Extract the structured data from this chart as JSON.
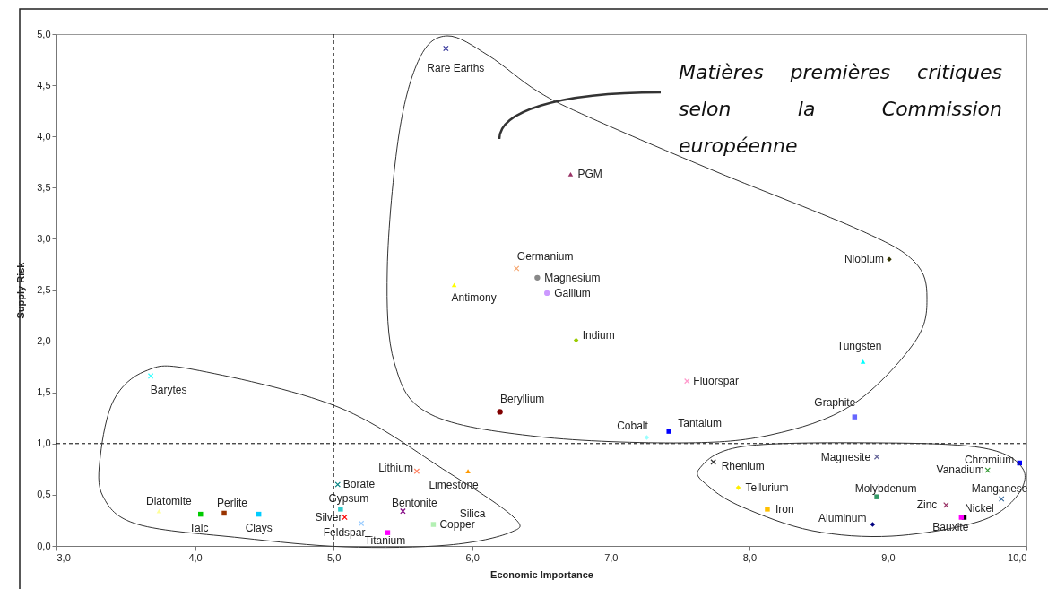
{
  "chart_data": {
    "type": "scatter",
    "xlabel": "Economic Importance",
    "ylabel": "Supply Risk",
    "xlim": [
      3,
      10
    ],
    "ylim": [
      0,
      5
    ],
    "xticks": [
      {
        "value": 3,
        "label": "3,0"
      },
      {
        "value": 4,
        "label": "4,0"
      },
      {
        "value": 5,
        "label": "5,0"
      },
      {
        "value": 6,
        "label": "6,0"
      },
      {
        "value": 7,
        "label": "7,0"
      },
      {
        "value": 8,
        "label": "8,0"
      },
      {
        "value": 9,
        "label": "9,0"
      },
      {
        "value": 10,
        "label": "10,0"
      }
    ],
    "yticks": [
      {
        "value": 0,
        "label": "0,0"
      },
      {
        "value": 0.5,
        "label": "0,5"
      },
      {
        "value": 1,
        "label": "1,0"
      },
      {
        "value": 1.5,
        "label": "1,5"
      },
      {
        "value": 2,
        "label": "2,0"
      },
      {
        "value": 2.5,
        "label": "2,5"
      },
      {
        "value": 3,
        "label": "3,0"
      },
      {
        "value": 3.5,
        "label": "3,5"
      },
      {
        "value": 4,
        "label": "4,0"
      },
      {
        "value": 4.5,
        "label": "4,5"
      },
      {
        "value": 5,
        "label": "5,0"
      }
    ],
    "ref_lines": [
      {
        "axis": "x",
        "value": 5,
        "line_style": "dashed"
      },
      {
        "axis": "y",
        "value": 1,
        "line_style": "dashed"
      }
    ],
    "annotations": [
      "Matières premières critiques selon la Commission européenne",
      "Silica"
    ],
    "series": [
      {
        "name": "Rare Earths",
        "color": "#333399",
        "marker": "cross",
        "x": [
          5.81
        ],
        "values": [
          4.86
        ]
      },
      {
        "name": "PGM",
        "color": "#993366",
        "marker": "triangle",
        "x": [
          6.71
        ],
        "values": [
          3.63
        ]
      },
      {
        "name": "Germanium",
        "color": "#f5a36b",
        "marker": "cross",
        "x": [
          6.32
        ],
        "values": [
          2.71
        ]
      },
      {
        "name": "Magnesium",
        "color": "#888888",
        "marker": "circle",
        "x": [
          6.47
        ],
        "values": [
          2.62
        ]
      },
      {
        "name": "Gallium",
        "color": "#cc99ff",
        "marker": "circle",
        "x": [
          6.54
        ],
        "values": [
          2.47
        ]
      },
      {
        "name": "Antimony",
        "color": "#ffff00",
        "marker": "triangle",
        "x": [
          5.87
        ],
        "values": [
          2.55
        ]
      },
      {
        "name": "Indium",
        "color": "#99cc00",
        "marker": "diamond",
        "x": [
          6.75
        ],
        "values": [
          2.01
        ]
      },
      {
        "name": "Fluorspar",
        "color": "#ff99cc",
        "marker": "cross",
        "x": [
          7.55
        ],
        "values": [
          1.61
        ]
      },
      {
        "name": "Beryllium",
        "color": "#800000",
        "marker": "circle",
        "x": [
          6.2
        ],
        "values": [
          1.31
        ]
      },
      {
        "name": "Cobalt",
        "color": "#99ffff",
        "marker": "diamond",
        "x": [
          7.26
        ],
        "values": [
          1.06
        ]
      },
      {
        "name": "Tantalum",
        "color": "#0000ff",
        "marker": "square",
        "x": [
          7.42
        ],
        "values": [
          1.12
        ]
      },
      {
        "name": "Niobium",
        "color": "#333300",
        "marker": "diamond",
        "x": [
          9.01
        ],
        "values": [
          2.8
        ]
      },
      {
        "name": "Tungsten",
        "color": "#00ffff",
        "marker": "triangle",
        "x": [
          8.82
        ],
        "values": [
          1.8
        ]
      },
      {
        "name": "Graphite",
        "color": "#6666ff",
        "marker": "square",
        "x": [
          8.76
        ],
        "values": [
          1.26
        ]
      },
      {
        "name": "Barytes",
        "color": "#33ffff",
        "marker": "cross",
        "x": [
          3.68
        ],
        "values": [
          1.66
        ]
      },
      {
        "name": "Diatomite",
        "color": "#ffff99",
        "marker": "triangle",
        "x": [
          3.74
        ],
        "values": [
          0.34
        ]
      },
      {
        "name": "Talc",
        "color": "#00cc00",
        "marker": "square",
        "x": [
          4.04
        ],
        "values": [
          0.31
        ]
      },
      {
        "name": "Perlite",
        "color": "#993300",
        "marker": "square",
        "x": [
          4.21
        ],
        "values": [
          0.32
        ]
      },
      {
        "name": "Clays",
        "color": "#00ccff",
        "marker": "square",
        "x": [
          4.46
        ],
        "values": [
          0.31
        ]
      },
      {
        "name": "Borate",
        "color": "#008080",
        "marker": "cross",
        "x": [
          5.03
        ],
        "values": [
          0.6
        ]
      },
      {
        "name": "Gypsum",
        "color": "#33cccc",
        "marker": "square",
        "x": [
          5.05
        ],
        "values": [
          0.36
        ]
      },
      {
        "name": "Silver",
        "color": "#ff0000",
        "marker": "cross",
        "x": [
          5.08
        ],
        "values": [
          0.28
        ]
      },
      {
        "name": "Feldspar",
        "color": "#99ccff",
        "marker": "cross",
        "x": [
          5.2
        ],
        "values": [
          0.22
        ]
      },
      {
        "name": "Titanium",
        "color": "#ff00ff",
        "marker": "square",
        "x": [
          5.39
        ],
        "values": [
          0.13
        ]
      },
      {
        "name": "Lithium",
        "color": "#ff8060",
        "marker": "cross",
        "x": [
          5.6
        ],
        "values": [
          0.73
        ]
      },
      {
        "name": "Limestone",
        "color": "#ff9900",
        "marker": "triangle",
        "x": [
          5.97
        ],
        "values": [
          0.73
        ]
      },
      {
        "name": "Bentonite",
        "color": "#800080",
        "marker": "cross",
        "x": [
          5.5
        ],
        "values": [
          0.34
        ]
      },
      {
        "name": "Copper",
        "color": "#b3f0b3",
        "marker": "square",
        "x": [
          5.72
        ],
        "values": [
          0.21
        ]
      },
      {
        "name": "Rhenium",
        "color": "#333333",
        "marker": "cross",
        "x": [
          7.74
        ],
        "values": [
          0.82
        ]
      },
      {
        "name": "Tellurium",
        "color": "#ffee00",
        "marker": "diamond",
        "x": [
          7.92
        ],
        "values": [
          0.57
        ]
      },
      {
        "name": "Iron",
        "color": "#ffc000",
        "marker": "square",
        "x": [
          8.13
        ],
        "values": [
          0.36
        ]
      },
      {
        "name": "Magnesite",
        "color": "#666699",
        "marker": "cross",
        "x": [
          8.92
        ],
        "values": [
          0.87
        ]
      },
      {
        "name": "Molybdenum",
        "color": "#339966",
        "marker": "square",
        "x": [
          8.92
        ],
        "values": [
          0.48
        ]
      },
      {
        "name": "Aluminum",
        "color": "#000080",
        "marker": "diamond",
        "x": [
          8.89
        ],
        "values": [
          0.21
        ]
      },
      {
        "name": "Chromium",
        "color": "#0000ff",
        "marker": "square",
        "x": [
          9.95
        ],
        "values": [
          0.81
        ]
      },
      {
        "name": "Vanadium",
        "color": "#339933",
        "marker": "cross",
        "x": [
          9.72
        ],
        "values": [
          0.74
        ]
      },
      {
        "name": "Manganese",
        "color": "#336699",
        "marker": "cross",
        "x": [
          9.82
        ],
        "values": [
          0.46
        ]
      },
      {
        "name": "Zinc",
        "color": "#993366",
        "marker": "cross",
        "x": [
          9.42
        ],
        "values": [
          0.4
        ]
      },
      {
        "name": "Nickel",
        "color": "#000000",
        "marker": "square",
        "x": [
          9.55
        ],
        "values": [
          0.28
        ]
      },
      {
        "name": "Bauxite",
        "color": "#ff00ff",
        "marker": "square",
        "x": [
          9.53
        ],
        "values": [
          0.28
        ]
      }
    ]
  }
}
